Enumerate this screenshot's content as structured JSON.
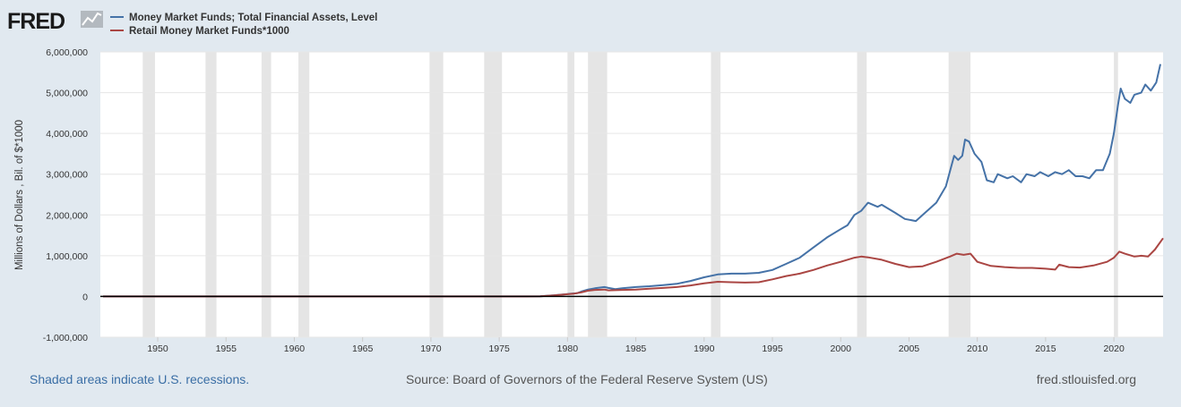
{
  "brand": {
    "logo_text": "FRED",
    "logo_icon": "line-chart-icon"
  },
  "colors": {
    "background": "#e1e9f0",
    "plot_background": "#ffffff",
    "recession": "#e5e5e5",
    "series_1": "#4572a7",
    "series_2": "#aa4643",
    "zero_line": "#000000",
    "link": "#3a6ea5"
  },
  "footer": {
    "left": "Shaded areas indicate U.S. recessions.",
    "center": "Source: Board of Governors of the Federal Reserve System (US)",
    "right": "fred.stlouisfed.org"
  },
  "chart_data": {
    "type": "line",
    "title": "",
    "xlabel": "",
    "ylabel": "Millions of Dollars , Bil. of $*1000",
    "xlim": [
      1945.8,
      2023.6
    ],
    "ylim": [
      -1000000,
      6000000
    ],
    "grid": true,
    "legend_placement": "top-left",
    "x_ticks": [
      "1950",
      "1955",
      "1960",
      "1965",
      "1970",
      "1975",
      "1980",
      "1985",
      "1990",
      "1995",
      "2000",
      "2005",
      "2010",
      "2015",
      "2020"
    ],
    "x_tick_values": [
      1950,
      1955,
      1960,
      1965,
      1970,
      1975,
      1980,
      1985,
      1990,
      1995,
      2000,
      2005,
      2010,
      2015,
      2020
    ],
    "y_ticks": [
      "-1,000,000",
      "0",
      "1,000,000",
      "2,000,000",
      "3,000,000",
      "4,000,000",
      "5,000,000",
      "6,000,000"
    ],
    "y_tick_values": [
      -1000000,
      0,
      1000000,
      2000000,
      3000000,
      4000000,
      5000000,
      6000000
    ],
    "recessions": [
      [
        1948.9,
        1949.8
      ],
      [
        1953.5,
        1954.3
      ],
      [
        1957.6,
        1958.3
      ],
      [
        1960.3,
        1961.1
      ],
      [
        1969.9,
        1970.9
      ],
      [
        1973.9,
        1975.2
      ],
      [
        1980.0,
        1980.5
      ],
      [
        1981.5,
        1982.9
      ],
      [
        1990.5,
        1991.2
      ],
      [
        2001.2,
        2001.9
      ],
      [
        2007.9,
        2009.5
      ],
      [
        2020.0,
        2020.3
      ]
    ],
    "series": [
      {
        "name": "Money Market Funds; Total Financial Assets, Level",
        "color": "#4572a7",
        "points": [
          [
            1946.0,
            0
          ],
          [
            1977.0,
            0
          ],
          [
            1978.0,
            5000
          ],
          [
            1979.0,
            30000
          ],
          [
            1980.0,
            60000
          ],
          [
            1980.7,
            80000
          ],
          [
            1981.0,
            120000
          ],
          [
            1981.5,
            170000
          ],
          [
            1982.0,
            200000
          ],
          [
            1982.7,
            230000
          ],
          [
            1983.0,
            210000
          ],
          [
            1983.5,
            180000
          ],
          [
            1984.0,
            200000
          ],
          [
            1985.0,
            230000
          ],
          [
            1986.0,
            250000
          ],
          [
            1987.0,
            280000
          ],
          [
            1988.0,
            310000
          ],
          [
            1989.0,
            380000
          ],
          [
            1990.0,
            470000
          ],
          [
            1991.0,
            540000
          ],
          [
            1992.0,
            560000
          ],
          [
            1993.0,
            560000
          ],
          [
            1994.0,
            580000
          ],
          [
            1995.0,
            650000
          ],
          [
            1996.0,
            800000
          ],
          [
            1997.0,
            950000
          ],
          [
            1998.0,
            1200000
          ],
          [
            1999.0,
            1450000
          ],
          [
            2000.0,
            1650000
          ],
          [
            2000.5,
            1750000
          ],
          [
            2001.0,
            2000000
          ],
          [
            2001.5,
            2100000
          ],
          [
            2002.0,
            2300000
          ],
          [
            2002.7,
            2200000
          ],
          [
            2003.0,
            2250000
          ],
          [
            2004.0,
            2050000
          ],
          [
            2004.7,
            1900000
          ],
          [
            2005.5,
            1850000
          ],
          [
            2006.0,
            2000000
          ],
          [
            2007.0,
            2300000
          ],
          [
            2007.7,
            2700000
          ],
          [
            2008.3,
            3450000
          ],
          [
            2008.6,
            3350000
          ],
          [
            2008.9,
            3450000
          ],
          [
            2009.1,
            3850000
          ],
          [
            2009.4,
            3800000
          ],
          [
            2009.8,
            3500000
          ],
          [
            2010.3,
            3300000
          ],
          [
            2010.7,
            2850000
          ],
          [
            2011.2,
            2800000
          ],
          [
            2011.5,
            3000000
          ],
          [
            2012.2,
            2900000
          ],
          [
            2012.6,
            2950000
          ],
          [
            2013.2,
            2800000
          ],
          [
            2013.6,
            3000000
          ],
          [
            2014.2,
            2950000
          ],
          [
            2014.6,
            3050000
          ],
          [
            2015.2,
            2950000
          ],
          [
            2015.7,
            3050000
          ],
          [
            2016.2,
            3000000
          ],
          [
            2016.7,
            3100000
          ],
          [
            2017.2,
            2950000
          ],
          [
            2017.7,
            2950000
          ],
          [
            2018.2,
            2900000
          ],
          [
            2018.7,
            3100000
          ],
          [
            2019.2,
            3100000
          ],
          [
            2019.7,
            3500000
          ],
          [
            2020.0,
            4000000
          ],
          [
            2020.3,
            4700000
          ],
          [
            2020.5,
            5100000
          ],
          [
            2020.8,
            4850000
          ],
          [
            2021.2,
            4750000
          ],
          [
            2021.5,
            4950000
          ],
          [
            2022.0,
            5000000
          ],
          [
            2022.3,
            5200000
          ],
          [
            2022.7,
            5050000
          ],
          [
            2023.1,
            5250000
          ],
          [
            2023.4,
            5700000
          ]
        ]
      },
      {
        "name": "Retail Money Market Funds*1000",
        "color": "#aa4643",
        "points": [
          [
            1946.0,
            0
          ],
          [
            1977.0,
            0
          ],
          [
            1978.0,
            5000
          ],
          [
            1979.0,
            25000
          ],
          [
            1980.0,
            55000
          ],
          [
            1980.5,
            70000
          ],
          [
            1981.0,
            100000
          ],
          [
            1981.5,
            140000
          ],
          [
            1982.0,
            160000
          ],
          [
            1982.7,
            170000
          ],
          [
            1983.0,
            150000
          ],
          [
            1984.0,
            160000
          ],
          [
            1985.0,
            170000
          ],
          [
            1986.0,
            190000
          ],
          [
            1987.0,
            210000
          ],
          [
            1988.0,
            230000
          ],
          [
            1989.0,
            270000
          ],
          [
            1990.0,
            320000
          ],
          [
            1991.0,
            360000
          ],
          [
            1992.0,
            350000
          ],
          [
            1993.0,
            340000
          ],
          [
            1994.0,
            350000
          ],
          [
            1995.0,
            420000
          ],
          [
            1996.0,
            500000
          ],
          [
            1997.0,
            560000
          ],
          [
            1998.0,
            650000
          ],
          [
            1999.0,
            760000
          ],
          [
            2000.0,
            850000
          ],
          [
            2001.0,
            950000
          ],
          [
            2001.5,
            980000
          ],
          [
            2002.0,
            960000
          ],
          [
            2003.0,
            900000
          ],
          [
            2004.0,
            800000
          ],
          [
            2005.0,
            720000
          ],
          [
            2006.0,
            740000
          ],
          [
            2007.0,
            850000
          ],
          [
            2008.0,
            980000
          ],
          [
            2008.5,
            1050000
          ],
          [
            2009.0,
            1020000
          ],
          [
            2009.5,
            1050000
          ],
          [
            2010.0,
            850000
          ],
          [
            2011.0,
            750000
          ],
          [
            2012.0,
            720000
          ],
          [
            2013.0,
            700000
          ],
          [
            2014.0,
            700000
          ],
          [
            2015.0,
            680000
          ],
          [
            2015.7,
            660000
          ],
          [
            2016.0,
            780000
          ],
          [
            2016.7,
            720000
          ],
          [
            2017.5,
            710000
          ],
          [
            2018.5,
            760000
          ],
          [
            2019.5,
            850000
          ],
          [
            2020.0,
            950000
          ],
          [
            2020.4,
            1100000
          ],
          [
            2020.8,
            1050000
          ],
          [
            2021.5,
            980000
          ],
          [
            2022.0,
            1000000
          ],
          [
            2022.5,
            980000
          ],
          [
            2023.0,
            1150000
          ],
          [
            2023.6,
            1430000
          ]
        ]
      }
    ]
  }
}
